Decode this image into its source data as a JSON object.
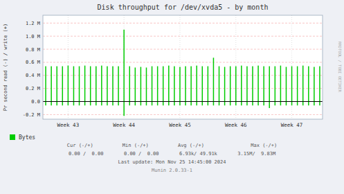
{
  "chart_data": {
    "type": "bar",
    "title": "Disk throughput for /dev/xvda5 - by month",
    "y_label": "Pr second read (-) / write (+)",
    "categories": [
      null,
      null,
      null,
      null,
      "Week 43",
      null,
      null,
      null,
      null,
      null,
      null,
      null,
      null,
      null,
      "Week 44",
      null,
      null,
      null,
      null,
      null,
      null,
      null,
      null,
      null,
      "Week 45",
      null,
      null,
      null,
      null,
      null,
      null,
      null,
      null,
      null,
      "Week 46",
      null,
      null,
      null,
      null,
      null,
      null,
      null,
      null,
      null,
      "Week 47",
      null,
      null,
      null,
      null,
      null
    ],
    "series": [
      {
        "name": "Bytes",
        "color": "#00cc00",
        "values": [
          0.54,
          0.54,
          0.54,
          0.54,
          0.55,
          0.54,
          0.54,
          0.55,
          0.54,
          0.54,
          0.55,
          0.54,
          0.54,
          0.54,
          1.1,
          0.54,
          0.52,
          0.53,
          0.52,
          0.54,
          0.54,
          0.54,
          0.55,
          0.54,
          0.53,
          0.54,
          0.54,
          0.55,
          0.54,
          0.54,
          0.67,
          0.54,
          0.53,
          0.54,
          0.54,
          0.55,
          0.54,
          0.54,
          0.55,
          0.54,
          0.54,
          0.54,
          0.55,
          0.53,
          0.54,
          0.54,
          0.55,
          0.54,
          0.53,
          0.54
        ]
      },
      {
        "color": "#00cc00",
        "values": [
          -0.06,
          -0.06,
          -0.06,
          -0.06,
          -0.06,
          -0.06,
          -0.06,
          -0.06,
          -0.06,
          -0.06,
          -0.06,
          -0.06,
          -0.06,
          -0.06,
          -0.22,
          -0.06,
          -0.06,
          -0.06,
          -0.06,
          -0.06,
          -0.06,
          -0.06,
          -0.06,
          -0.06,
          -0.06,
          -0.06,
          -0.06,
          -0.06,
          -0.06,
          -0.06,
          -0.06,
          -0.06,
          -0.06,
          -0.06,
          -0.06,
          -0.06,
          -0.06,
          -0.06,
          -0.06,
          -0.06,
          -0.1,
          -0.06,
          -0.06,
          -0.06,
          -0.06,
          -0.06,
          -0.06,
          -0.06,
          -0.06,
          -0.06
        ]
      }
    ],
    "ylim": [
      -0.27,
      1.32
    ],
    "yticks": [
      {
        "value": -0.2,
        "label": "-0.2 M"
      },
      {
        "value": 0,
        "label": "0.0"
      },
      {
        "value": 0.2,
        "label": "0.2 M"
      },
      {
        "value": 0.4,
        "label": "0.4 M"
      },
      {
        "value": 0.6,
        "label": "0.6 M"
      },
      {
        "value": 0.8,
        "label": "0.8 M"
      },
      {
        "value": 1.0,
        "label": "1.0 M"
      },
      {
        "value": 1.2,
        "label": "1.2 M"
      }
    ],
    "grid": true,
    "legend": "bottom",
    "annotations": [
      "Cur (-/+)          Min (-/+)          Avg (-/+)                Max (-/+)",
      "0.00 /  0.00       0.00 /  0.00       6.93k/ 49.91k       3.15M/  9.83M",
      "Last update: Mon Nov 25 14:45:00 2024",
      "Munin 2.0.33-1",
      "RRDTOOL / TOBI OETIKER"
    ]
  }
}
